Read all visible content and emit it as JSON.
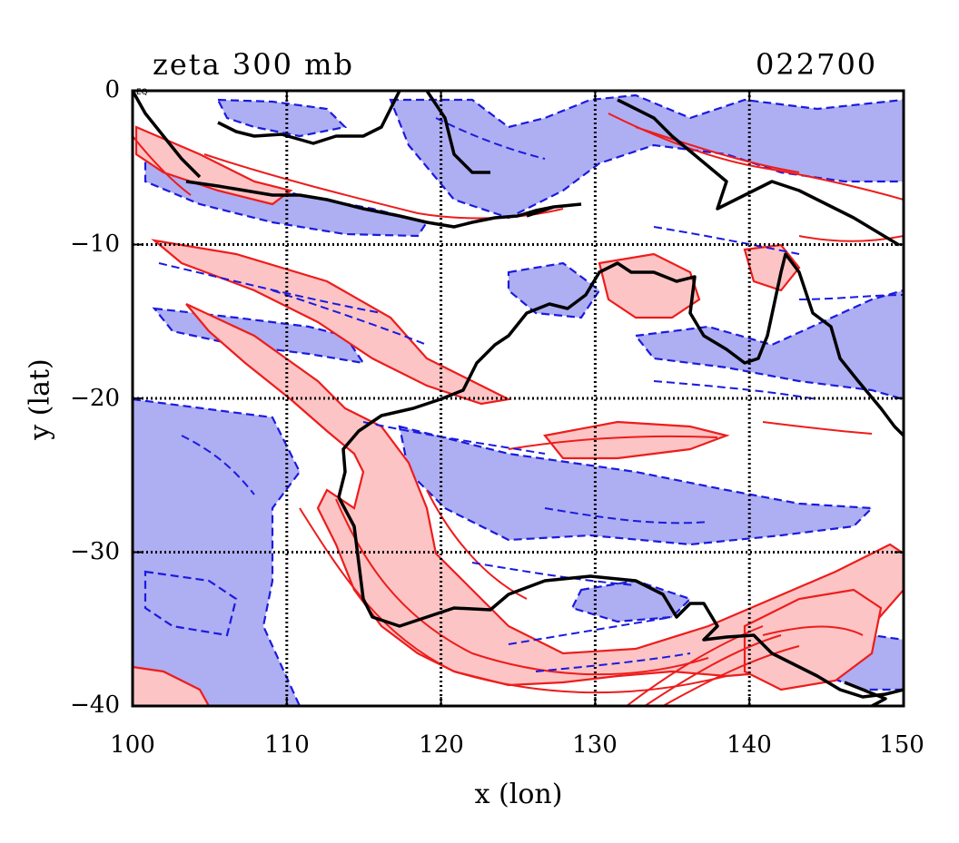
{
  "header": {
    "title": "zeta 300 mb",
    "time_code": "022700"
  },
  "axes": {
    "xlabel": "x (lon)",
    "ylabel": "y (lat)",
    "x_ticks": [
      "100",
      "110",
      "120",
      "130",
      "140",
      "150"
    ],
    "y_ticks": [
      "0",
      "−10",
      "−20",
      "−30",
      "−40"
    ],
    "x_range": [
      100,
      150
    ],
    "y_range": [
      -40,
      0
    ],
    "grid_lon": [
      110,
      120,
      130,
      140
    ],
    "grid_lat": [
      -10,
      -20,
      -30
    ],
    "corner_mark": "EQ"
  },
  "colors": {
    "positive_fill": "#fcc4c4",
    "positive_line": "#ee1c1c",
    "negative_fill": "#aeaef2",
    "negative_line": "#1a1ae0",
    "coast": "#000000",
    "grid": "#000000"
  }
}
